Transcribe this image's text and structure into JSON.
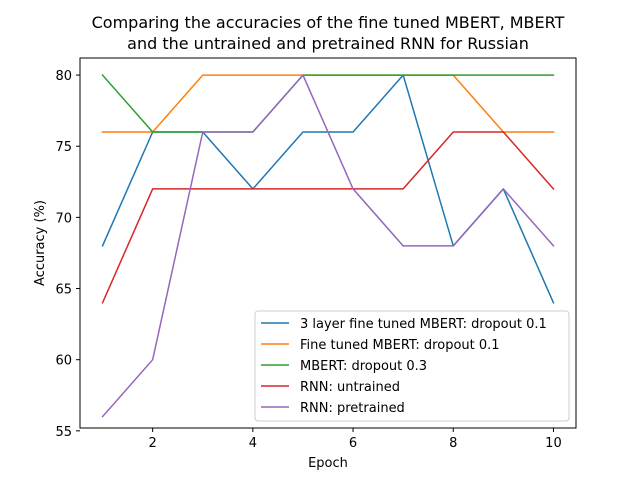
{
  "chart_data": {
    "type": "line",
    "title": "Comparing the accuracies of the fine tuned MBERT, MBERT and the untrained and pretrained RNN for Russian",
    "title_lines": [
      "Comparing the accuracies of the fine tuned MBERT, MBERT",
      "and the untrained and pretrained RNN for Russian"
    ],
    "xlabel": "Epoch",
    "ylabel": "Accuracy (%)",
    "xlim": [
      0.55,
      10.45
    ],
    "ylim": [
      55.2,
      81.2
    ],
    "x_ticks": [
      2,
      4,
      6,
      8,
      10
    ],
    "x_tick_labels": [
      "2",
      "4",
      "6",
      "8",
      "10"
    ],
    "y_ticks": [
      55,
      60,
      65,
      70,
      75,
      80
    ],
    "y_tick_labels": [
      "55",
      "60",
      "65",
      "70",
      "75",
      "80"
    ],
    "grid": false,
    "legend_position": "lower right",
    "x": [
      1,
      2,
      3,
      4,
      5,
      6,
      7,
      8,
      9,
      10
    ],
    "series": [
      {
        "name": "3 layer fine tuned MBERT: dropout 0.1",
        "color": "#1f77b4",
        "values": [
          68,
          76,
          76,
          72,
          76,
          76,
          80,
          68,
          72,
          64
        ]
      },
      {
        "name": "Fine tuned MBERT: dropout 0.1",
        "color": "#ff7f0e",
        "values": [
          76,
          76,
          80,
          80,
          80,
          80,
          80,
          80,
          76,
          76
        ]
      },
      {
        "name": "MBERT: dropout 0.3",
        "color": "#2ca02c",
        "values": [
          80,
          76,
          76,
          76,
          80,
          80,
          80,
          80,
          80,
          80
        ]
      },
      {
        "name": "RNN: untrained",
        "color": "#d62728",
        "values": [
          64,
          72,
          72,
          72,
          72,
          72,
          72,
          76,
          76,
          72
        ]
      },
      {
        "name": "RNN: pretrained",
        "color": "#9467bd",
        "values": [
          56,
          60,
          76,
          76,
          80,
          72,
          68,
          68,
          72,
          68
        ]
      }
    ]
  }
}
